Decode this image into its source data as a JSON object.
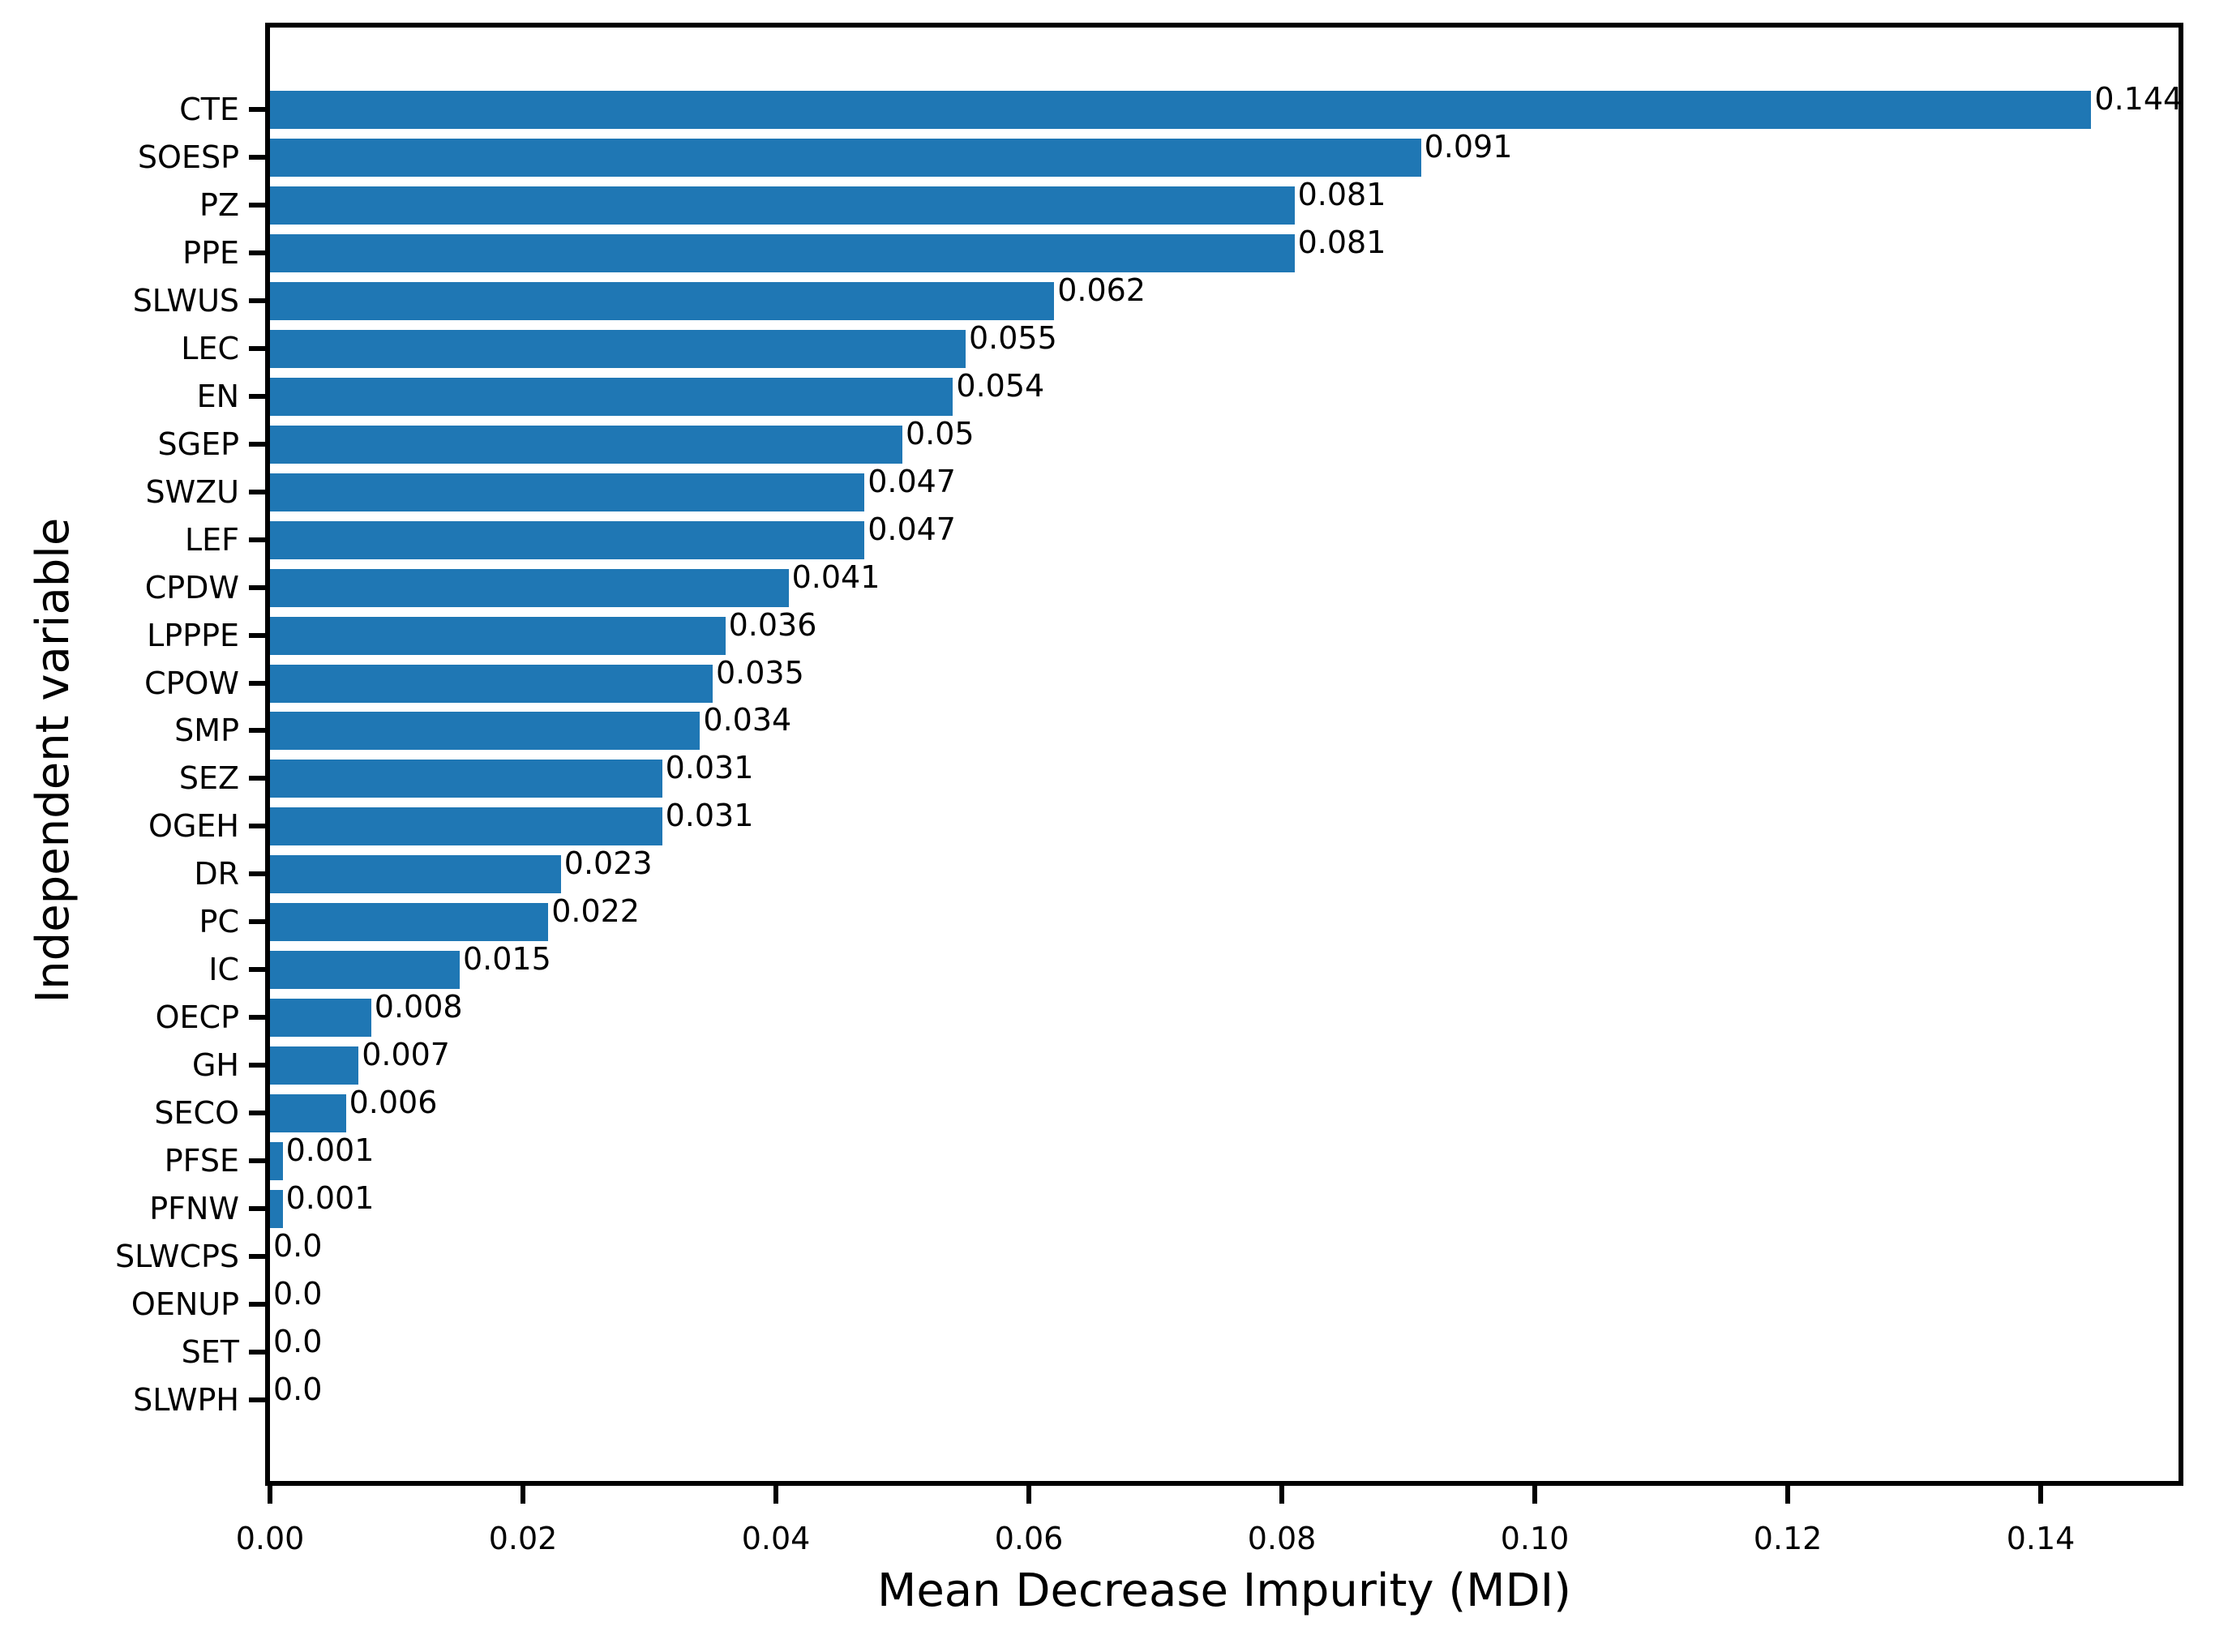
{
  "chart_data": {
    "type": "bar",
    "orientation": "horizontal",
    "title": "",
    "xlabel": "Mean Decrease Impurity (MDI)",
    "ylabel": "Independent variable",
    "categories": [
      "CTE",
      "SOESP",
      "PZ",
      "PPE",
      "SLWUS",
      "LEC",
      "EN",
      "SGEP",
      "SWZU",
      "LEF",
      "CPDW",
      "LPPPE",
      "CPOW",
      "SMP",
      "SEZ",
      "OGEH",
      "DR",
      "PC",
      "IC",
      "OECP",
      "GH",
      "SECO",
      "PFSE",
      "PFNW",
      "SLWCPS",
      "OENUP",
      "SET",
      "SLWPH"
    ],
    "values": [
      0.144,
      0.091,
      0.081,
      0.081,
      0.062,
      0.055,
      0.054,
      0.05,
      0.047,
      0.047,
      0.041,
      0.036,
      0.035,
      0.034,
      0.031,
      0.031,
      0.023,
      0.022,
      0.015,
      0.008,
      0.007,
      0.006,
      0.001,
      0.001,
      0.0,
      0.0,
      0.0,
      0.0
    ],
    "value_labels": [
      "0.144",
      "0.091",
      "0.081",
      "0.081",
      "0.062",
      "0.055",
      "0.054",
      "0.05",
      "0.047",
      "0.047",
      "0.041",
      "0.036",
      "0.035",
      "0.034",
      "0.031",
      "0.031",
      "0.023",
      "0.022",
      "0.015",
      "0.008",
      "0.007",
      "0.006",
      "0.001",
      "0.001",
      "0.0",
      "0.0",
      "0.0",
      "0.0"
    ],
    "x_tick_labels": [
      "0.00",
      "0.02",
      "0.04",
      "0.06",
      "0.08",
      "0.10",
      "0.12",
      "0.14"
    ],
    "x_tick_values": [
      0.0,
      0.02,
      0.04,
      0.06,
      0.08,
      0.1,
      0.12,
      0.14
    ],
    "xlim": [
      0.0,
      0.1512
    ],
    "bar_color": "#1f77b4",
    "axis_color": "#000000",
    "grid": false,
    "legend": null
  }
}
